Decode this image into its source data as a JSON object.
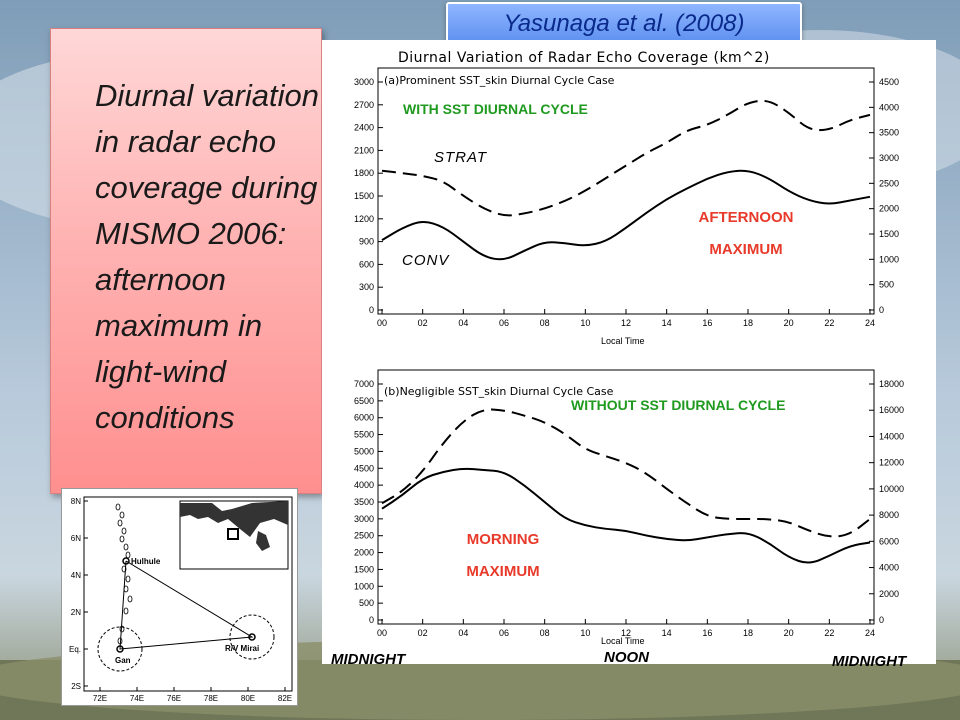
{
  "slide": {
    "citation": "Yasunaga et al. (2008)",
    "callout": "Diurnal variation in radar echo coverage during MISMO 2006: afternoon maximum in light-wind conditions"
  },
  "annotations": {
    "with_sst": "WITH SST DIURNAL CYCLE",
    "without_sst": "WITHOUT SST DIURNAL CYCLE",
    "strat": "STRAT",
    "conv": "CONV",
    "afternoon_1": "AFTERNOON",
    "afternoon_2": "MAXIMUM",
    "morning_1": "MORNING",
    "morning_2": "MAXIMUM",
    "midnight_left": "MIDNIGHT",
    "noon": "NOON",
    "midnight_right": "MIDNIGHT"
  },
  "chart_data": [
    {
      "type": "line",
      "title": "Diurnal Variation of Radar Echo Coverage (km^2)",
      "panel_title": "(a)Prominent SST_skin Diurnal Cycle Case",
      "xlabel": "Local Time",
      "xlim": [
        0,
        24
      ],
      "x_ticks": [
        "00",
        "02",
        "04",
        "06",
        "08",
        "10",
        "12",
        "14",
        "16",
        "18",
        "20",
        "22",
        "24"
      ],
      "ylim_left": [
        0,
        3000
      ],
      "y_ticks_left": [
        0,
        300,
        600,
        900,
        1200,
        1500,
        1800,
        2100,
        2400,
        2700,
        3000
      ],
      "ylim_right": [
        0,
        4500
      ],
      "y_ticks_right": [
        0,
        500,
        1000,
        1500,
        2000,
        2500,
        3000,
        3500,
        4000,
        4500
      ],
      "grid": false,
      "series": [
        {
          "name": "CONV",
          "axis": "left",
          "style": "solid",
          "x": [
            0,
            1,
            2,
            3,
            4,
            5,
            6,
            7,
            8,
            9,
            10,
            11,
            12,
            13,
            14,
            15,
            16,
            17,
            18,
            19,
            20,
            21,
            22,
            23,
            24
          ],
          "values": [
            920,
            1080,
            1180,
            1100,
            900,
            700,
            650,
            780,
            900,
            880,
            840,
            900,
            1080,
            1280,
            1460,
            1600,
            1730,
            1820,
            1840,
            1740,
            1560,
            1440,
            1390,
            1440,
            1490
          ]
        },
        {
          "name": "STRAT",
          "axis": "right",
          "style": "dashed",
          "x": [
            0,
            1,
            2,
            3,
            4,
            5,
            6,
            7,
            8,
            9,
            10,
            11,
            12,
            13,
            14,
            15,
            16,
            17,
            18,
            19,
            20,
            21,
            22,
            23,
            24
          ],
          "values": [
            2750,
            2700,
            2650,
            2550,
            2250,
            2000,
            1850,
            1900,
            2000,
            2150,
            2350,
            2600,
            2850,
            3100,
            3300,
            3550,
            3650,
            3850,
            4100,
            4150,
            3900,
            3550,
            3550,
            3750,
            3850
          ]
        }
      ]
    },
    {
      "type": "line",
      "panel_title": "(b)Negligible SST_skin Diurnal Cycle Case",
      "xlabel": "Local Time",
      "xlim": [
        0,
        24
      ],
      "x_ticks": [
        "00",
        "02",
        "04",
        "06",
        "08",
        "10",
        "12",
        "14",
        "16",
        "18",
        "20",
        "22",
        "24"
      ],
      "ylim_left": [
        0,
        7000
      ],
      "y_ticks_left": [
        0,
        500,
        1000,
        1500,
        2000,
        2500,
        3000,
        3500,
        4000,
        4500,
        5000,
        5500,
        6000,
        6500,
        7000
      ],
      "ylim_right": [
        0,
        18000
      ],
      "y_ticks_right": [
        0,
        2000,
        4000,
        6000,
        8000,
        10000,
        12000,
        14000,
        16000,
        18000
      ],
      "grid": false,
      "series": [
        {
          "name": "CONV",
          "axis": "left",
          "style": "solid",
          "x": [
            0,
            1,
            2,
            3,
            4,
            5,
            6,
            7,
            8,
            9,
            10,
            11,
            12,
            13,
            14,
            15,
            16,
            17,
            18,
            19,
            20,
            21,
            22,
            23,
            24
          ],
          "values": [
            3300,
            3700,
            4200,
            4400,
            4500,
            4450,
            4400,
            4000,
            3500,
            3000,
            2800,
            2700,
            2650,
            2500,
            2400,
            2350,
            2450,
            2550,
            2600,
            2300,
            1850,
            1650,
            1900,
            2200,
            2300
          ]
        },
        {
          "name": "STRAT",
          "axis": "right",
          "style": "dashed",
          "x": [
            0,
            1,
            2,
            3,
            4,
            5,
            6,
            7,
            8,
            9,
            10,
            11,
            12,
            13,
            14,
            15,
            16,
            17,
            18,
            19,
            20,
            21,
            22,
            23,
            24
          ],
          "values": [
            8900,
            9800,
            11300,
            13500,
            15200,
            16100,
            16000,
            15600,
            15100,
            14200,
            13000,
            12500,
            12000,
            11200,
            10000,
            8900,
            7900,
            7700,
            7700,
            7700,
            7500,
            6800,
            6300,
            6500,
            7700
          ]
        }
      ]
    }
  ],
  "map": {
    "lat_ticks": [
      "8N",
      "6N",
      "4N",
      "2N",
      "Eq.",
      "2S"
    ],
    "lon_ticks": [
      "72E",
      "74E",
      "76E",
      "78E",
      "80E",
      "82E"
    ],
    "stations": {
      "hulhule": "Hulhule",
      "gan": "Gan",
      "mirai": "R/V Mirai"
    },
    "colors": {
      "site": "#000000"
    }
  },
  "colors": {
    "citation_bg": "#6d9cf4",
    "citation_text": "#0a2a8c",
    "callout_bg": "#ffb0b0",
    "green_annotation": "#1f9a1f",
    "red_annotation": "#e83a2a"
  }
}
